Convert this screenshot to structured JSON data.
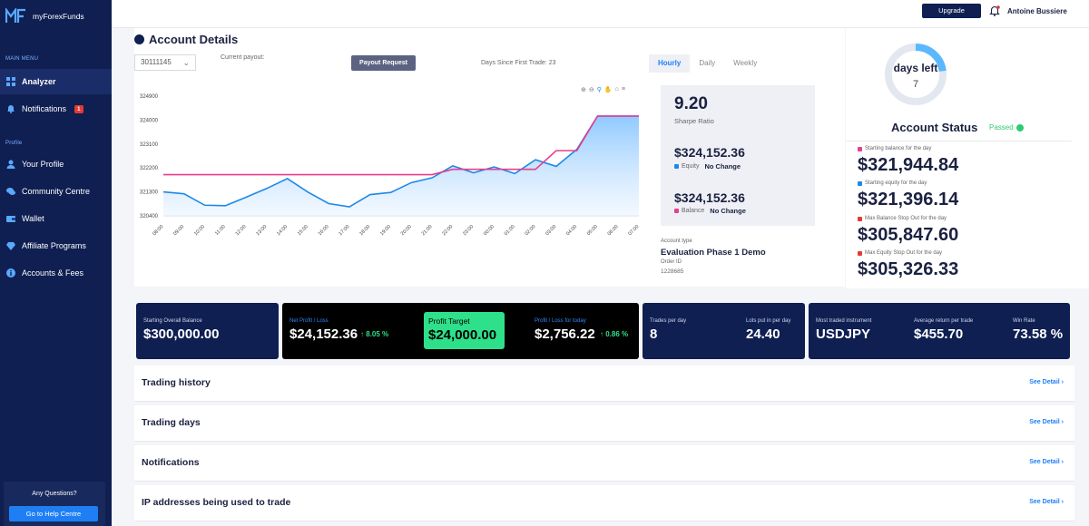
{
  "brand": {
    "name": "myForexFunds"
  },
  "sidebar": {
    "main_menu_heading": "MAIN MENU",
    "profile_heading": "Profile",
    "items": [
      {
        "label": "Analyzer",
        "icon": "grid-icon"
      },
      {
        "label": "Notifications",
        "icon": "bell-icon",
        "badge": "1"
      },
      {
        "label": "Your Profile",
        "icon": "user-icon"
      },
      {
        "label": "Community Centre",
        "icon": "chat-icon"
      },
      {
        "label": "Wallet",
        "icon": "wallet-icon"
      },
      {
        "label": "Affiliate Programs",
        "icon": "diamond-icon"
      },
      {
        "label": "Accounts & Fees",
        "icon": "info-icon"
      }
    ],
    "help": {
      "question": "Any Questions?",
      "button": "Go to Help Centre"
    }
  },
  "topbar": {
    "upgrade_label": "Upgrade",
    "user_name": "Antoine Bussiere"
  },
  "account": {
    "title": "Account Details",
    "account_number": "30111145",
    "current_payout_label": "Current payout:",
    "payout_button": "Payout Request",
    "days_since_first_trade": "Days Since First Trade: 23",
    "tabs": [
      "Hourly",
      "Daily",
      "Weekly"
    ],
    "active_tab": "Hourly"
  },
  "chart_data": {
    "type": "line",
    "x": [
      "08:00",
      "09:00",
      "10:00",
      "11:00",
      "12:00",
      "13:00",
      "14:00",
      "15:00",
      "16:00",
      "17:00",
      "18:00",
      "19:00",
      "20:00",
      "21:00",
      "22:00",
      "23:00",
      "00:00",
      "01:00",
      "02:00",
      "03:00",
      "04:00",
      "05:00",
      "06:00",
      "07:00"
    ],
    "y_ticks": [
      320400,
      321300,
      322200,
      323100,
      324000,
      324900
    ],
    "ylim": [
      320400,
      324900
    ],
    "series": [
      {
        "name": "Equity",
        "color": "#1e88e5",
        "values": [
          321300,
          321230,
          320800,
          320780,
          321100,
          321430,
          321800,
          321290,
          320860,
          320740,
          321200,
          321280,
          321650,
          321830,
          322280,
          322020,
          322240,
          321990,
          322510,
          322260,
          322900,
          324150,
          324150,
          324150
        ]
      },
      {
        "name": "Balance",
        "color": "#e83e8c",
        "values": [
          321950,
          321950,
          321950,
          321950,
          321950,
          321950,
          321950,
          321950,
          321950,
          321950,
          321950,
          321950,
          321950,
          321950,
          322150,
          322150,
          322150,
          322150,
          322150,
          322850,
          322850,
          324150,
          324150,
          324150
        ]
      }
    ],
    "grid": false
  },
  "stats": {
    "sharpe_value": "9.20",
    "sharpe_label": "Sharpe Ratio",
    "equity_value": "$324,152.36",
    "equity_label": "Equity",
    "equity_change": "No Change",
    "balance_value": "$324,152.36",
    "balance_label": "Balance",
    "balance_change": "No Change",
    "account_type_label": "Account type",
    "account_type_value": "Evaluation Phase 1 Demo",
    "order_id_label": "Order ID",
    "order_id_value": "1228685"
  },
  "days_left": {
    "label": "days left",
    "value": "7",
    "fraction_elapsed": 0.23
  },
  "status": {
    "title": "Account Status",
    "state": "Passed",
    "rows": [
      {
        "label": "Starting balance for the day",
        "value": "$321,944.84",
        "color": "#e83e8c"
      },
      {
        "label": "Starting equity for the day",
        "value": "$321,396.14",
        "color": "#1e88e5"
      },
      {
        "label": "Max Balance Stop Out for the day",
        "value": "$305,847.60",
        "color": "#e53935"
      },
      {
        "label": "Max Equity Stop Out for the day",
        "value": "$305,326.33",
        "color": "#e53935"
      }
    ]
  },
  "summary": {
    "starting_balance_label": "Starting Overall Balance",
    "starting_balance_value": "$300,000.00",
    "net_pl_label": "Net Profit / Loss",
    "net_pl_value": "$24,152.36",
    "net_pl_pct": "↑ 8.05 %",
    "profit_target_label": "Profit Target",
    "profit_target_value": "$24,000.00",
    "today_pl_label": "Profit / Loss for today",
    "today_pl_value": "$2,756.22",
    "today_pl_pct": "↑ 0.86 %",
    "trades_per_day_label": "Trades per day",
    "trades_per_day_value": "8",
    "lots_label": "Lots put in per day",
    "lots_value": "24.40",
    "instrument_label": "Most traded instrument",
    "instrument_value": "USDJPY",
    "avg_return_label": "Average return per trade",
    "avg_return_value": "$455.70",
    "win_rate_label": "Win Rate",
    "win_rate_value": "73.58 %"
  },
  "sections": [
    {
      "title": "Trading history",
      "link": "See Detail ›"
    },
    {
      "title": "Trading days",
      "link": "See Detail ›"
    },
    {
      "title": "Notifications",
      "link": "See Detail ›"
    },
    {
      "title": "IP addresses being used to trade",
      "link": "See Detail ›"
    }
  ]
}
